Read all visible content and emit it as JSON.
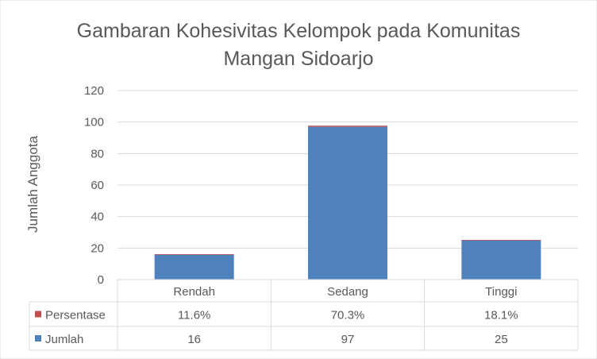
{
  "chart_data": {
    "type": "bar",
    "stacked": true,
    "title_lines": [
      "Gambaran Kohesivitas Kelompok pada Komunitas",
      "Mangan Sidoarjo"
    ],
    "xlabel": "",
    "ylabel": "Jumlah Anggota",
    "ylim": [
      0,
      120
    ],
    "yticks": [
      0,
      20,
      40,
      60,
      80,
      100,
      120
    ],
    "grid": true,
    "categories": [
      "Rendah",
      "Sedang",
      "Tinggi"
    ],
    "series": [
      {
        "name": "Jumlah",
        "color": "#4f81bd",
        "values": [
          16,
          97,
          25
        ],
        "labels": [
          "16",
          "97",
          "25"
        ]
      },
      {
        "name": "Persentase",
        "color": "#c0504d",
        "values": [
          0.116,
          0.703,
          0.181
        ],
        "labels": [
          "11.6%",
          "70.3%",
          "18.1%"
        ]
      }
    ],
    "data_table": true,
    "data_table_row_order": [
      "Persentase",
      "Jumlah"
    ]
  }
}
